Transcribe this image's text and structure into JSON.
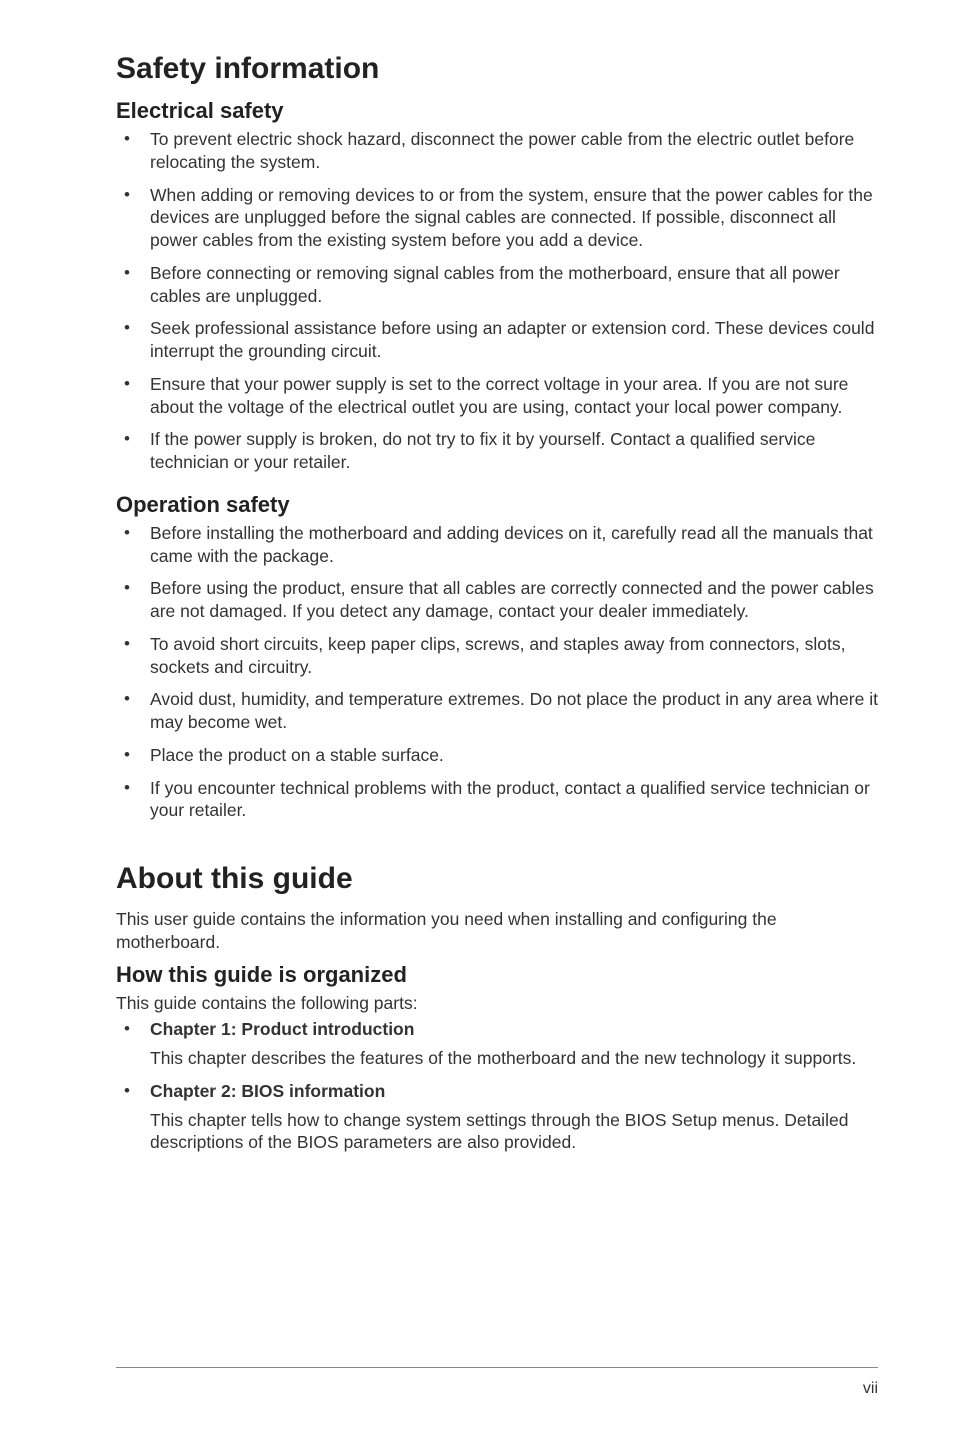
{
  "pageNumber": "vii",
  "typography": {
    "body_font": "Helvetica/Arial",
    "body_size_pt": 13,
    "body_color": "#333333",
    "h1_size_pt": 22,
    "h2_size_pt": 17,
    "heading_color": "#222222",
    "background_color": "#ffffff",
    "rule_color": "#888888"
  },
  "safety": {
    "title": "Safety information",
    "electrical": {
      "heading": "Electrical safety",
      "items": [
        "To prevent electric shock hazard, disconnect the power cable from the electric outlet before relocating the system.",
        "When adding or removing devices to or from the system, ensure that the power cables for the devices are unplugged before the signal cables are connected. If possible, disconnect all power cables from the existing system before you add a device.",
        "Before connecting or removing signal cables from the motherboard, ensure that all power cables are unplugged.",
        "Seek professional assistance before using an adapter or extension cord. These devices could interrupt the grounding circuit.",
        "Ensure that your power supply is set to the correct voltage in your area. If you are not sure about the voltage of the electrical outlet you are using, contact your local power company.",
        "If the power supply is broken, do not try to fix it by yourself. Contact a qualified service technician or your retailer."
      ]
    },
    "operation": {
      "heading": "Operation safety",
      "items": [
        "Before installing the motherboard and adding devices on it, carefully read all the manuals that came with the package.",
        "Before using the product, ensure that all cables are correctly connected and the power cables are not damaged. If you detect any damage, contact your dealer immediately.",
        "To avoid short circuits, keep paper clips, screws, and staples away from connectors, slots, sockets and circuitry.",
        "Avoid dust, humidity, and temperature extremes. Do not place the product in any area where it may become wet.",
        "Place the product on a stable surface.",
        "If you encounter technical problems with the product, contact a qualified service technician or your retailer."
      ]
    }
  },
  "about": {
    "title": "About this guide",
    "intro": "This user guide contains the information you need when installing and configuring the motherboard.",
    "organized": {
      "heading": "How this guide is organized",
      "lead": "This guide contains the following parts:",
      "chapters": [
        {
          "title": "Chapter 1: Product introduction",
          "desc": "This chapter describes the features of the motherboard and the new technology it supports."
        },
        {
          "title": "Chapter 2: BIOS information",
          "desc": "This chapter tells how to change system settings through the BIOS Setup menus. Detailed descriptions of the BIOS parameters are also provided."
        }
      ]
    }
  }
}
